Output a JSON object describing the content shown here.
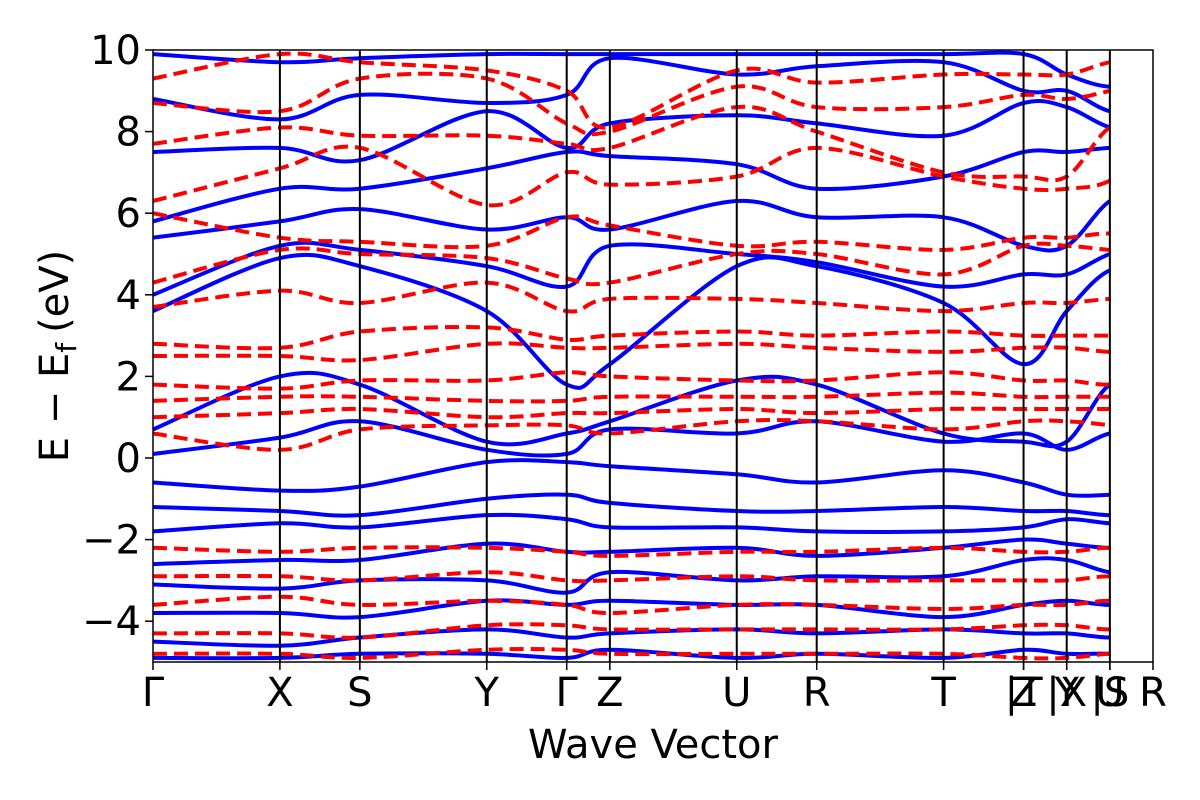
{
  "chart_data": {
    "type": "line",
    "title": "",
    "xlabel": "Wave Vector",
    "ylabel": {
      "main": "E − E",
      "subscript": "f",
      "unit": "(eV)"
    },
    "ylim": [
      -5,
      10
    ],
    "yticks": [
      {
        "value": 10,
        "label": "10"
      },
      {
        "value": 8,
        "label": "8"
      },
      {
        "value": 6,
        "label": "6"
      },
      {
        "value": 4,
        "label": "4"
      },
      {
        "value": 2,
        "label": "2"
      },
      {
        "value": 0,
        "label": "0"
      },
      {
        "value": -2,
        "label": "−2"
      },
      {
        "value": -4,
        "label": "−4"
      }
    ],
    "kpoints": [
      {
        "label": "Γ",
        "x": 0.0
      },
      {
        "label": "X",
        "x": 1.0
      },
      {
        "label": "S",
        "x": 1.63
      },
      {
        "label": "Y",
        "x": 2.63
      },
      {
        "label": "Γ",
        "x": 3.26
      },
      {
        "label": "Z",
        "x": 3.6
      },
      {
        "label": "U",
        "x": 4.6
      },
      {
        "label": "R",
        "x": 5.23
      },
      {
        "label": "T",
        "x": 6.23
      },
      {
        "label": "Z",
        "x": 6.86
      },
      {
        "label": "|T",
        "x": 6.86
      },
      {
        "label": "Y",
        "x": 7.2
      },
      {
        "label": "|X",
        "x": 7.2
      },
      {
        "label": "U",
        "x": 7.54
      },
      {
        "label": "|S",
        "x": 7.54
      },
      {
        "label": "R",
        "x": 7.88
      }
    ],
    "xlim": [
      0.0,
      7.88
    ],
    "series": [
      {
        "style": "solid",
        "color": "#0000ff",
        "bands": [
          [
            9.9,
            9.7,
            9.8,
            9.9,
            9.9,
            9.9,
            9.9,
            9.9,
            9.9,
            9.9,
            9.4,
            9.1,
            9.3,
            9.6
          ],
          [
            8.8,
            8.3,
            8.9,
            8.7,
            8.9,
            9.8,
            9.4,
            9.6,
            9.7,
            9.0,
            9.0,
            8.5,
            8.5,
            9.2
          ],
          [
            7.5,
            7.6,
            7.3,
            8.5,
            7.6,
            8.2,
            8.4,
            8.2,
            7.9,
            8.7,
            8.6,
            8.1,
            8.0,
            8.0
          ],
          [
            5.8,
            6.6,
            6.6,
            7.1,
            7.5,
            7.4,
            7.2,
            6.6,
            6.9,
            7.5,
            7.5,
            7.6,
            7.6,
            7.2
          ],
          [
            5.4,
            5.8,
            6.1,
            5.6,
            5.9,
            5.6,
            6.3,
            5.9,
            5.9,
            5.2,
            5.2,
            6.3,
            6.6,
            6.6
          ],
          [
            4.0,
            5.2,
            5.1,
            4.7,
            4.2,
            5.2,
            5.0,
            4.8,
            4.2,
            4.5,
            4.5,
            5.0,
            5.2,
            5.0
          ],
          [
            3.6,
            4.9,
            4.7,
            3.6,
            1.8,
            2.3,
            4.7,
            4.7,
            3.8,
            2.3,
            3.6,
            4.6,
            4.5,
            4.5
          ],
          [
            0.7,
            2.0,
            1.8,
            0.4,
            0.6,
            0.9,
            1.9,
            1.8,
            0.6,
            0.4,
            0.4,
            1.8,
            1.8,
            1.8
          ],
          [
            0.1,
            0.5,
            0.9,
            0.2,
            0.1,
            0.7,
            0.6,
            0.9,
            0.4,
            0.6,
            0.2,
            0.6,
            0.6,
            0.9
          ],
          [
            -0.6,
            -0.8,
            -0.7,
            -0.1,
            -0.1,
            -0.2,
            -0.4,
            -0.6,
            -0.3,
            -0.6,
            -0.9,
            -0.9,
            -0.8,
            -0.7
          ],
          [
            -1.2,
            -1.3,
            -1.4,
            -1.0,
            -0.9,
            -1.1,
            -1.3,
            -1.3,
            -1.2,
            -1.3,
            -1.3,
            -1.4,
            -1.3,
            -1.3
          ],
          [
            -1.8,
            -1.6,
            -1.7,
            -1.4,
            -1.5,
            -1.7,
            -1.7,
            -1.8,
            -1.8,
            -1.7,
            -1.5,
            -1.6,
            -1.6,
            -1.6
          ],
          [
            -2.6,
            -2.5,
            -2.5,
            -2.1,
            -2.3,
            -2.3,
            -2.2,
            -2.4,
            -2.2,
            -2.0,
            -2.1,
            -2.2,
            -2.1,
            -2.2
          ],
          [
            -3.1,
            -3.2,
            -3.0,
            -3.0,
            -3.3,
            -2.8,
            -3.0,
            -2.9,
            -2.9,
            -2.5,
            -2.5,
            -2.8,
            -2.8,
            -2.5
          ],
          [
            -3.8,
            -3.8,
            -3.9,
            -3.5,
            -3.6,
            -3.5,
            -3.6,
            -3.6,
            -3.9,
            -3.6,
            -3.5,
            -3.6,
            -3.5,
            -3.6
          ],
          [
            -4.5,
            -4.6,
            -4.4,
            -4.2,
            -4.4,
            -4.3,
            -4.2,
            -4.3,
            -4.2,
            -4.3,
            -4.3,
            -4.4,
            -4.3,
            -4.4
          ],
          [
            -4.9,
            -4.9,
            -4.8,
            -4.8,
            -4.9,
            -4.7,
            -4.9,
            -4.8,
            -4.9,
            -4.7,
            -4.8,
            -4.8,
            -4.9,
            -4.9
          ]
        ]
      },
      {
        "style": "dashed",
        "color": "#ff0000",
        "bands": [
          [
            9.3,
            9.9,
            9.7,
            9.5,
            9.0,
            8.1,
            9.5,
            9.2,
            9.4,
            9.4,
            9.4,
            9.7,
            9.8,
            9.8
          ],
          [
            8.7,
            8.5,
            9.3,
            9.3,
            8.2,
            8.0,
            9.1,
            8.6,
            8.6,
            8.9,
            8.8,
            9.0,
            9.3,
            9.3
          ],
          [
            7.7,
            8.1,
            7.9,
            7.9,
            7.7,
            7.6,
            8.6,
            8.0,
            7.0,
            6.9,
            6.9,
            8.1,
            8.2,
            8.1
          ],
          [
            6.3,
            7.1,
            7.6,
            6.2,
            7.0,
            6.7,
            6.9,
            7.6,
            6.9,
            6.6,
            6.6,
            6.8,
            7.7,
            7.7
          ],
          [
            6.0,
            5.4,
            5.3,
            5.2,
            5.9,
            5.7,
            5.2,
            5.3,
            5.1,
            5.4,
            5.4,
            5.5,
            5.3,
            5.3
          ],
          [
            4.3,
            5.1,
            5.0,
            4.9,
            4.4,
            4.3,
            5.0,
            5.0,
            4.5,
            5.2,
            5.2,
            5.1,
            5.0,
            4.9
          ],
          [
            3.7,
            4.1,
            3.8,
            4.3,
            3.6,
            3.9,
            3.9,
            3.8,
            3.6,
            3.8,
            3.8,
            3.9,
            3.9,
            3.9
          ],
          [
            2.8,
            2.7,
            3.1,
            3.2,
            2.9,
            3.0,
            3.1,
            3.0,
            3.1,
            3.0,
            3.0,
            3.0,
            3.0,
            3.1
          ],
          [
            2.5,
            2.5,
            2.4,
            2.8,
            2.7,
            2.7,
            2.8,
            2.7,
            2.6,
            2.7,
            2.7,
            2.6,
            2.6,
            2.6
          ],
          [
            1.8,
            1.7,
            1.9,
            1.9,
            2.1,
            2.0,
            1.9,
            1.9,
            2.1,
            1.9,
            1.9,
            1.8,
            2.0,
            1.9
          ],
          [
            1.4,
            1.5,
            1.5,
            1.4,
            1.4,
            1.5,
            1.5,
            1.5,
            1.6,
            1.5,
            1.5,
            1.5,
            1.5,
            1.5
          ],
          [
            1.0,
            1.1,
            1.2,
            1.0,
            1.1,
            1.1,
            1.2,
            1.1,
            1.2,
            1.2,
            1.2,
            1.2,
            1.2,
            1.2
          ],
          [
            0.6,
            0.2,
            0.7,
            0.8,
            0.8,
            0.6,
            0.9,
            0.9,
            0.7,
            0.9,
            0.9,
            0.8,
            0.6,
            0.9
          ],
          [
            -2.2,
            -2.3,
            -2.2,
            -2.2,
            -2.3,
            -2.4,
            -2.3,
            -2.3,
            -2.2,
            -2.3,
            -2.3,
            -2.2,
            -2.3,
            -2.3
          ],
          [
            -2.9,
            -2.9,
            -3.0,
            -2.8,
            -3.0,
            -3.0,
            -2.9,
            -3.0,
            -3.0,
            -3.0,
            -3.0,
            -2.9,
            -3.0,
            -3.0
          ],
          [
            -3.6,
            -3.4,
            -3.6,
            -3.5,
            -3.6,
            -3.8,
            -3.6,
            -3.6,
            -3.7,
            -3.6,
            -3.6,
            -3.5,
            -3.6,
            -3.6
          ],
          [
            -4.3,
            -4.3,
            -4.4,
            -4.1,
            -4.1,
            -4.2,
            -4.2,
            -4.2,
            -4.2,
            -4.1,
            -4.1,
            -4.2,
            -4.1,
            -4.2
          ],
          [
            -4.8,
            -4.8,
            -4.9,
            -4.7,
            -4.7,
            -4.8,
            -4.8,
            -4.8,
            -4.8,
            -4.9,
            -4.9,
            -4.8,
            -4.8,
            -4.7
          ]
        ]
      }
    ]
  }
}
